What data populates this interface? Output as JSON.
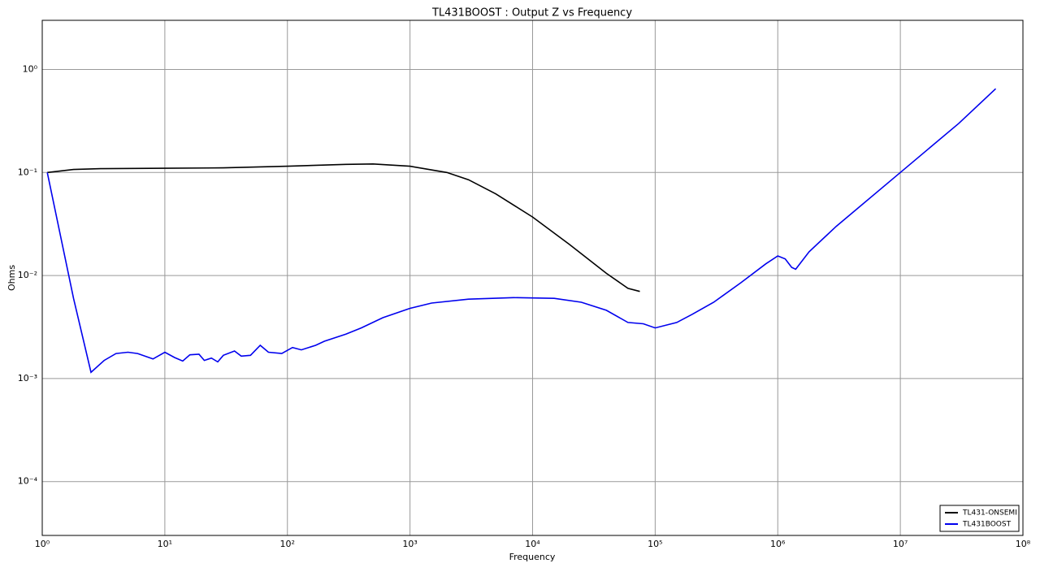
{
  "chart_data": {
    "type": "line",
    "title": "TL431BOOST : Output Z vs Frequency",
    "xlabel": "Frequency",
    "ylabel": "Ohms",
    "xscale": "log",
    "yscale": "log",
    "grid": true,
    "legend": "lower right",
    "xlim": [
      1,
      100000000
    ],
    "ylim": [
      3e-05,
      3
    ],
    "xticks": [
      {
        "value": 1,
        "label": "10⁰"
      },
      {
        "value": 10,
        "label": "10¹"
      },
      {
        "value": 100,
        "label": "10²"
      },
      {
        "value": 1000,
        "label": "10³"
      },
      {
        "value": 10000,
        "label": "10⁴"
      },
      {
        "value": 100000,
        "label": "10⁵"
      },
      {
        "value": 1000000,
        "label": "10⁶"
      },
      {
        "value": 10000000,
        "label": "10⁷"
      },
      {
        "value": 100000000,
        "label": "10⁸"
      }
    ],
    "yticks": [
      {
        "value": 0.0001,
        "label": "10⁻⁴"
      },
      {
        "value": 0.001,
        "label": "10⁻³"
      },
      {
        "value": 0.01,
        "label": "10⁻²"
      },
      {
        "value": 0.1,
        "label": "10⁻¹"
      },
      {
        "value": 1,
        "label": "10⁰"
      }
    ],
    "series": [
      {
        "name": "TL431-ONSEMI",
        "color": "#000000",
        "x": [
          1.1,
          1.8,
          3,
          10,
          30,
          100,
          300,
          500,
          1000,
          2000,
          3000,
          5000,
          10000,
          20000,
          40000,
          60000,
          75000
        ],
        "values": [
          0.1,
          0.107,
          0.109,
          0.11,
          0.111,
          0.115,
          0.12,
          0.121,
          0.115,
          0.1,
          0.085,
          0.062,
          0.037,
          0.02,
          0.0105,
          0.0075,
          0.007
        ]
      },
      {
        "name": "TL431BOOST",
        "color": "#0000ee",
        "x": [
          1.1,
          1.8,
          2.5,
          3.2,
          4,
          5,
          6,
          8,
          10,
          12,
          14,
          16,
          19,
          21,
          24,
          27,
          30,
          37,
          42,
          50,
          60,
          70,
          90,
          110,
          130,
          170,
          200,
          300,
          400,
          600,
          1000,
          1500,
          3000,
          7000,
          15000,
          25000,
          40000,
          60000,
          80000,
          100000,
          150000,
          200000,
          300000,
          500000,
          800000,
          1000000,
          1150000,
          1300000,
          1400000,
          1800000,
          3000000,
          10000000,
          30000000,
          60000000
        ],
        "values": [
          0.1,
          0.006,
          0.00115,
          0.0015,
          0.00175,
          0.0018,
          0.00175,
          0.00155,
          0.0018,
          0.0016,
          0.00148,
          0.0017,
          0.00172,
          0.0015,
          0.00158,
          0.00145,
          0.00168,
          0.00185,
          0.00165,
          0.00168,
          0.0021,
          0.0018,
          0.00175,
          0.002,
          0.0019,
          0.0021,
          0.0023,
          0.0027,
          0.0031,
          0.0039,
          0.0048,
          0.0054,
          0.0059,
          0.0061,
          0.006,
          0.0055,
          0.0046,
          0.0035,
          0.0034,
          0.0031,
          0.0035,
          0.0042,
          0.0055,
          0.0085,
          0.013,
          0.0155,
          0.0145,
          0.012,
          0.0115,
          0.017,
          0.03,
          0.1,
          0.3,
          0.65
        ]
      }
    ]
  }
}
